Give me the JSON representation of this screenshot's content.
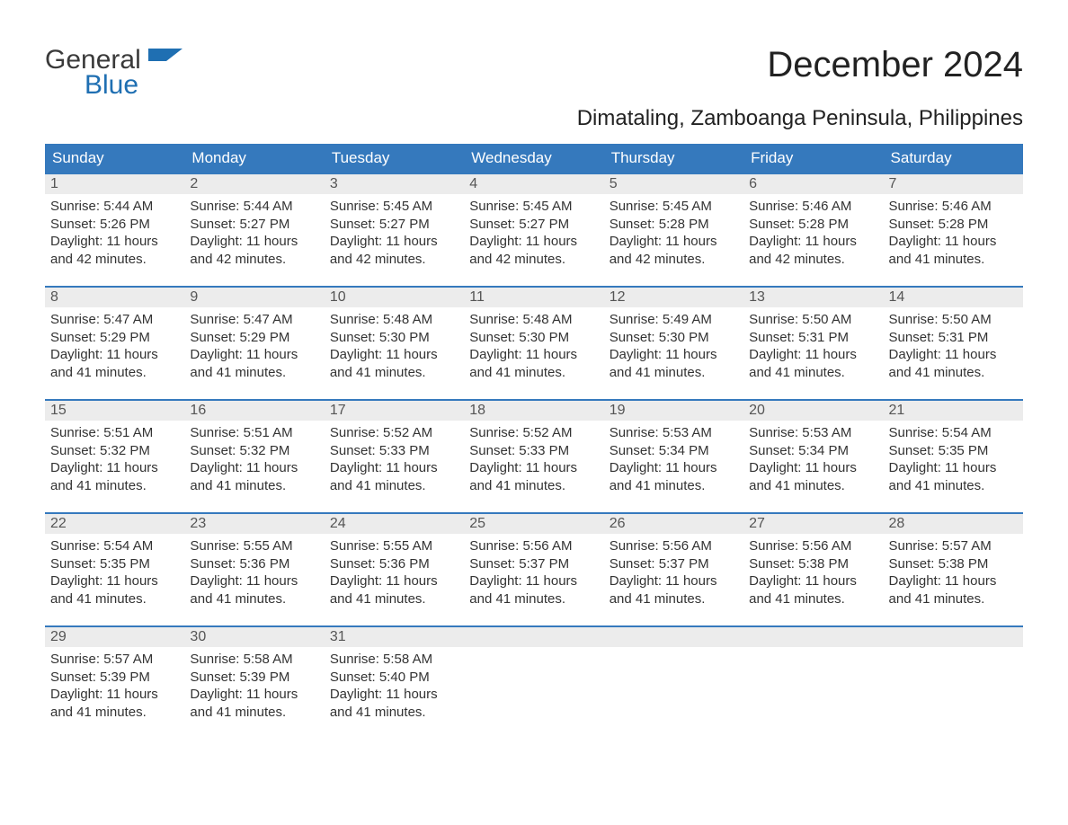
{
  "logo": {
    "word1": "General",
    "word2": "Blue"
  },
  "title": "December 2024",
  "location": "Dimataling, Zamboanga Peninsula, Philippines",
  "colors": {
    "header_bg": "#3579bd",
    "header_text": "#ffffff",
    "daynum_bg": "#ececec",
    "daynum_text": "#555555",
    "body_text": "#333333",
    "accent_blue": "#1f6fb2",
    "week_border": "#3579bd",
    "background": "#ffffff"
  },
  "typography": {
    "title_fontsize": 40,
    "location_fontsize": 24,
    "weekday_fontsize": 17,
    "daynum_fontsize": 16,
    "body_fontsize": 15,
    "logo_fontsize": 30
  },
  "weekdays": [
    "Sunday",
    "Monday",
    "Tuesday",
    "Wednesday",
    "Thursday",
    "Friday",
    "Saturday"
  ],
  "weeks": [
    [
      {
        "day": "1",
        "sunrise": "Sunrise: 5:44 AM",
        "sunset": "Sunset: 5:26 PM",
        "daylight1": "Daylight: 11 hours",
        "daylight2": "and 42 minutes."
      },
      {
        "day": "2",
        "sunrise": "Sunrise: 5:44 AM",
        "sunset": "Sunset: 5:27 PM",
        "daylight1": "Daylight: 11 hours",
        "daylight2": "and 42 minutes."
      },
      {
        "day": "3",
        "sunrise": "Sunrise: 5:45 AM",
        "sunset": "Sunset: 5:27 PM",
        "daylight1": "Daylight: 11 hours",
        "daylight2": "and 42 minutes."
      },
      {
        "day": "4",
        "sunrise": "Sunrise: 5:45 AM",
        "sunset": "Sunset: 5:27 PM",
        "daylight1": "Daylight: 11 hours",
        "daylight2": "and 42 minutes."
      },
      {
        "day": "5",
        "sunrise": "Sunrise: 5:45 AM",
        "sunset": "Sunset: 5:28 PM",
        "daylight1": "Daylight: 11 hours",
        "daylight2": "and 42 minutes."
      },
      {
        "day": "6",
        "sunrise": "Sunrise: 5:46 AM",
        "sunset": "Sunset: 5:28 PM",
        "daylight1": "Daylight: 11 hours",
        "daylight2": "and 42 minutes."
      },
      {
        "day": "7",
        "sunrise": "Sunrise: 5:46 AM",
        "sunset": "Sunset: 5:28 PM",
        "daylight1": "Daylight: 11 hours",
        "daylight2": "and 41 minutes."
      }
    ],
    [
      {
        "day": "8",
        "sunrise": "Sunrise: 5:47 AM",
        "sunset": "Sunset: 5:29 PM",
        "daylight1": "Daylight: 11 hours",
        "daylight2": "and 41 minutes."
      },
      {
        "day": "9",
        "sunrise": "Sunrise: 5:47 AM",
        "sunset": "Sunset: 5:29 PM",
        "daylight1": "Daylight: 11 hours",
        "daylight2": "and 41 minutes."
      },
      {
        "day": "10",
        "sunrise": "Sunrise: 5:48 AM",
        "sunset": "Sunset: 5:30 PM",
        "daylight1": "Daylight: 11 hours",
        "daylight2": "and 41 minutes."
      },
      {
        "day": "11",
        "sunrise": "Sunrise: 5:48 AM",
        "sunset": "Sunset: 5:30 PM",
        "daylight1": "Daylight: 11 hours",
        "daylight2": "and 41 minutes."
      },
      {
        "day": "12",
        "sunrise": "Sunrise: 5:49 AM",
        "sunset": "Sunset: 5:30 PM",
        "daylight1": "Daylight: 11 hours",
        "daylight2": "and 41 minutes."
      },
      {
        "day": "13",
        "sunrise": "Sunrise: 5:50 AM",
        "sunset": "Sunset: 5:31 PM",
        "daylight1": "Daylight: 11 hours",
        "daylight2": "and 41 minutes."
      },
      {
        "day": "14",
        "sunrise": "Sunrise: 5:50 AM",
        "sunset": "Sunset: 5:31 PM",
        "daylight1": "Daylight: 11 hours",
        "daylight2": "and 41 minutes."
      }
    ],
    [
      {
        "day": "15",
        "sunrise": "Sunrise: 5:51 AM",
        "sunset": "Sunset: 5:32 PM",
        "daylight1": "Daylight: 11 hours",
        "daylight2": "and 41 minutes."
      },
      {
        "day": "16",
        "sunrise": "Sunrise: 5:51 AM",
        "sunset": "Sunset: 5:32 PM",
        "daylight1": "Daylight: 11 hours",
        "daylight2": "and 41 minutes."
      },
      {
        "day": "17",
        "sunrise": "Sunrise: 5:52 AM",
        "sunset": "Sunset: 5:33 PM",
        "daylight1": "Daylight: 11 hours",
        "daylight2": "and 41 minutes."
      },
      {
        "day": "18",
        "sunrise": "Sunrise: 5:52 AM",
        "sunset": "Sunset: 5:33 PM",
        "daylight1": "Daylight: 11 hours",
        "daylight2": "and 41 minutes."
      },
      {
        "day": "19",
        "sunrise": "Sunrise: 5:53 AM",
        "sunset": "Sunset: 5:34 PM",
        "daylight1": "Daylight: 11 hours",
        "daylight2": "and 41 minutes."
      },
      {
        "day": "20",
        "sunrise": "Sunrise: 5:53 AM",
        "sunset": "Sunset: 5:34 PM",
        "daylight1": "Daylight: 11 hours",
        "daylight2": "and 41 minutes."
      },
      {
        "day": "21",
        "sunrise": "Sunrise: 5:54 AM",
        "sunset": "Sunset: 5:35 PM",
        "daylight1": "Daylight: 11 hours",
        "daylight2": "and 41 minutes."
      }
    ],
    [
      {
        "day": "22",
        "sunrise": "Sunrise: 5:54 AM",
        "sunset": "Sunset: 5:35 PM",
        "daylight1": "Daylight: 11 hours",
        "daylight2": "and 41 minutes."
      },
      {
        "day": "23",
        "sunrise": "Sunrise: 5:55 AM",
        "sunset": "Sunset: 5:36 PM",
        "daylight1": "Daylight: 11 hours",
        "daylight2": "and 41 minutes."
      },
      {
        "day": "24",
        "sunrise": "Sunrise: 5:55 AM",
        "sunset": "Sunset: 5:36 PM",
        "daylight1": "Daylight: 11 hours",
        "daylight2": "and 41 minutes."
      },
      {
        "day": "25",
        "sunrise": "Sunrise: 5:56 AM",
        "sunset": "Sunset: 5:37 PM",
        "daylight1": "Daylight: 11 hours",
        "daylight2": "and 41 minutes."
      },
      {
        "day": "26",
        "sunrise": "Sunrise: 5:56 AM",
        "sunset": "Sunset: 5:37 PM",
        "daylight1": "Daylight: 11 hours",
        "daylight2": "and 41 minutes."
      },
      {
        "day": "27",
        "sunrise": "Sunrise: 5:56 AM",
        "sunset": "Sunset: 5:38 PM",
        "daylight1": "Daylight: 11 hours",
        "daylight2": "and 41 minutes."
      },
      {
        "day": "28",
        "sunrise": "Sunrise: 5:57 AM",
        "sunset": "Sunset: 5:38 PM",
        "daylight1": "Daylight: 11 hours",
        "daylight2": "and 41 minutes."
      }
    ],
    [
      {
        "day": "29",
        "sunrise": "Sunrise: 5:57 AM",
        "sunset": "Sunset: 5:39 PM",
        "daylight1": "Daylight: 11 hours",
        "daylight2": "and 41 minutes."
      },
      {
        "day": "30",
        "sunrise": "Sunrise: 5:58 AM",
        "sunset": "Sunset: 5:39 PM",
        "daylight1": "Daylight: 11 hours",
        "daylight2": "and 41 minutes."
      },
      {
        "day": "31",
        "sunrise": "Sunrise: 5:58 AM",
        "sunset": "Sunset: 5:40 PM",
        "daylight1": "Daylight: 11 hours",
        "daylight2": "and 41 minutes."
      },
      {
        "day": "",
        "sunrise": "",
        "sunset": "",
        "daylight1": "",
        "daylight2": ""
      },
      {
        "day": "",
        "sunrise": "",
        "sunset": "",
        "daylight1": "",
        "daylight2": ""
      },
      {
        "day": "",
        "sunrise": "",
        "sunset": "",
        "daylight1": "",
        "daylight2": ""
      },
      {
        "day": "",
        "sunrise": "",
        "sunset": "",
        "daylight1": "",
        "daylight2": ""
      }
    ]
  ]
}
